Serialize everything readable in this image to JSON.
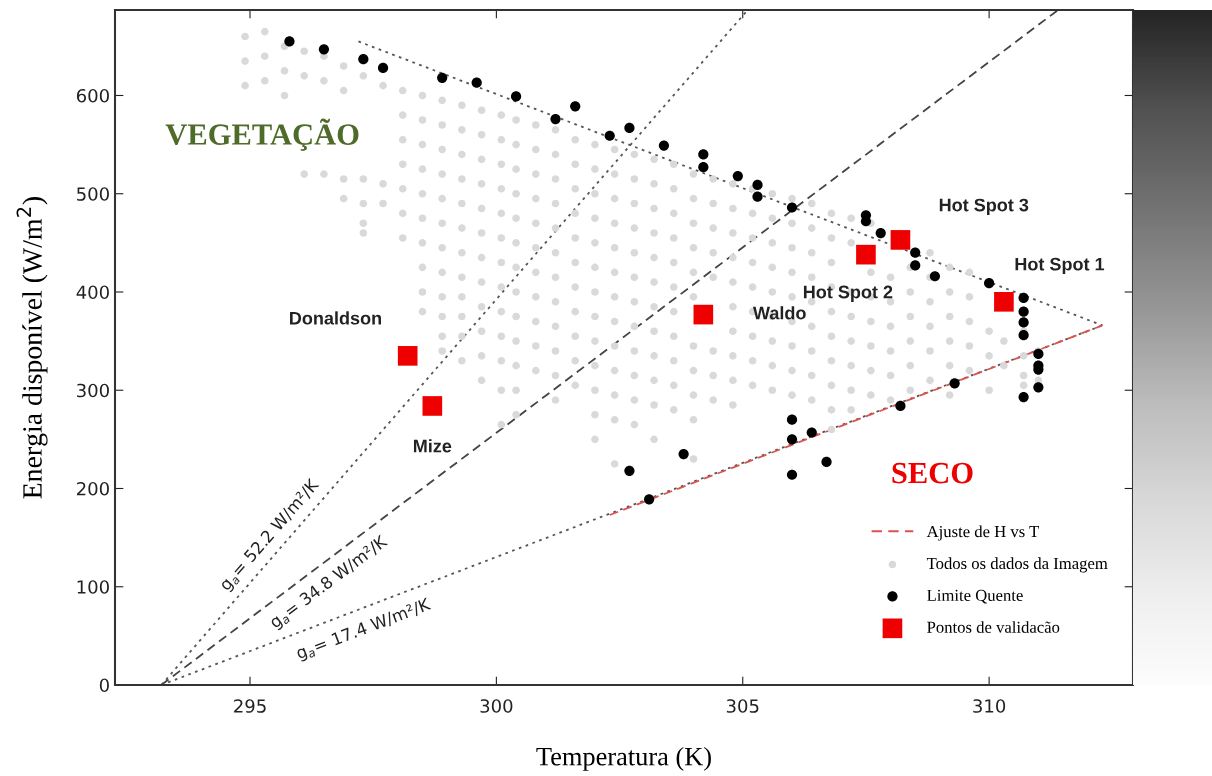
{
  "chart_data": {
    "type": "scatter",
    "xlabel": "Temperatura (K)",
    "ylabel": "Energia disponível (W/m$^{2}$)",
    "xlim": [
      292.26,
      312.92
    ],
    "ylim": [
      0,
      687
    ],
    "xticks": [
      295,
      300,
      305,
      310
    ],
    "yticks": [
      0,
      100,
      200,
      300,
      400,
      500,
      600
    ],
    "grid": false,
    "legend": "bottom right",
    "series": [
      {
        "type": "line",
        "color": "#555555",
        "line_style": "dotted",
        "marker": "none",
        "x": [
          293.2,
          305.1
        ],
        "values": [
          0,
          687
        ]
      },
      {
        "type": "line",
        "color": "#444444",
        "line_style": "dashed",
        "marker": "none",
        "x": [
          293.2,
          311.4
        ],
        "values": [
          0,
          687
        ]
      },
      {
        "type": "line",
        "color": "#555555",
        "line_style": "dotted",
        "marker": "none",
        "x": [
          293.2,
          312.3
        ],
        "values": [
          0,
          366
        ]
      },
      {
        "type": "line",
        "color": "#555555",
        "line_style": "dotted",
        "marker": "none",
        "x": [
          297.2,
          312.3
        ],
        "values": [
          655,
          366
        ]
      },
      {
        "name": "Ajuste de H vs T",
        "type": "line",
        "color": "#d9534f",
        "line_style": "dashed",
        "marker": "none",
        "x": [
          302.3,
          312.3
        ],
        "values": [
          173,
          366
        ]
      },
      {
        "name": "Todos os dados da Imagem",
        "color": "#d9d9d9",
        "marker": "circle",
        "x": [
          294.9,
          294.9,
          294.9,
          295.3,
          295.3,
          295.3,
          295.7,
          295.7,
          295.7,
          296.1,
          296.1,
          296.1,
          296.5,
          296.5,
          296.5,
          296.9,
          296.9,
          296.9,
          296.9,
          297.3,
          297.3,
          297.3,
          297.3,
          297.3,
          297.7,
          297.7,
          297.7,
          298.1,
          298.1,
          298.1,
          298.1,
          298.1,
          298.1,
          298.1,
          298.5,
          298.5,
          298.5,
          298.5,
          298.5,
          298.5,
          298.5,
          298.5,
          298.5,
          298.5,
          298.9,
          298.9,
          298.9,
          298.9,
          298.9,
          298.9,
          298.9,
          298.9,
          298.9,
          298.9,
          298.9,
          298.9,
          299.3,
          299.3,
          299.3,
          299.3,
          299.3,
          299.3,
          299.3,
          299.3,
          299.3,
          299.3,
          299.3,
          299.3,
          299.7,
          299.7,
          299.7,
          299.7,
          299.7,
          299.7,
          299.7,
          299.7,
          299.7,
          299.7,
          299.7,
          299.7,
          300.1,
          300.1,
          300.1,
          300.1,
          300.1,
          300.1,
          300.1,
          300.1,
          300.1,
          300.1,
          300.1,
          300.1,
          300.1,
          300.4,
          300.4,
          300.4,
          300.4,
          300.4,
          300.4,
          300.4,
          300.4,
          300.4,
          300.4,
          300.4,
          300.4,
          300.4,
          300.8,
          300.8,
          300.8,
          300.8,
          300.8,
          300.8,
          300.8,
          300.8,
          300.8,
          300.8,
          300.8,
          301.2,
          301.2,
          301.2,
          301.2,
          301.2,
          301.2,
          301.2,
          301.2,
          301.2,
          301.2,
          301.2,
          301.2,
          301.6,
          301.6,
          301.6,
          301.6,
          301.6,
          301.6,
          301.6,
          301.6,
          301.6,
          301.6,
          301.6,
          302.0,
          302.0,
          302.0,
          302.0,
          302.0,
          302.0,
          302.0,
          302.0,
          302.0,
          302.0,
          302.0,
          302.0,
          302.0,
          302.4,
          302.4,
          302.4,
          302.4,
          302.4,
          302.4,
          302.4,
          302.4,
          302.4,
          302.4,
          302.4,
          302.4,
          302.4,
          302.8,
          302.8,
          302.8,
          302.8,
          302.8,
          302.8,
          302.8,
          302.8,
          302.8,
          302.8,
          302.8,
          302.8,
          303.2,
          303.2,
          303.2,
          303.2,
          303.2,
          303.2,
          303.2,
          303.2,
          303.2,
          303.2,
          303.2,
          303.2,
          303.6,
          303.6,
          303.6,
          303.6,
          303.6,
          303.6,
          303.6,
          303.6,
          303.6,
          303.6,
          303.6,
          304.0,
          304.0,
          304.0,
          304.0,
          304.0,
          304.0,
          304.0,
          304.0,
          304.0,
          304.0,
          304.0,
          304.4,
          304.4,
          304.4,
          304.4,
          304.4,
          304.4,
          304.4,
          304.4,
          304.8,
          304.8,
          304.8,
          304.8,
          304.8,
          304.8,
          304.8,
          304.8,
          304.8,
          304.8,
          305.2,
          305.2,
          305.2,
          305.2,
          305.2,
          305.2,
          305.2,
          305.2,
          305.2,
          305.6,
          305.6,
          305.6,
          305.6,
          305.6,
          305.6,
          305.6,
          305.6,
          305.6,
          306.0,
          306.0,
          306.0,
          306.0,
          306.0,
          306.0,
          306.0,
          306.0,
          306.0,
          306.4,
          306.4,
          306.4,
          306.4,
          306.4,
          306.4,
          306.4,
          306.4,
          306.4,
          306.8,
          306.8,
          306.8,
          306.8,
          306.8,
          306.8,
          306.8,
          306.8,
          306.8,
          306.8,
          307.2,
          307.2,
          307.2,
          307.2,
          307.2,
          307.2,
          307.2,
          307.2,
          307.6,
          307.6,
          307.6,
          307.6,
          307.6,
          307.6,
          307.6,
          308.0,
          308.0,
          308.0,
          308.0,
          308.0,
          308.0,
          308.4,
          308.4,
          308.4,
          308.4,
          308.4,
          308.4,
          308.8,
          308.8,
          308.8,
          308.8,
          308.8,
          308.8,
          309.2,
          309.2,
          309.2,
          309.2,
          309.2,
          309.2,
          309.6,
          309.6,
          309.6,
          309.6,
          309.6,
          310.0,
          310.0,
          310.0,
          310.3,
          310.3,
          310.7,
          310.7,
          310.7,
          310.7,
          311.0,
          311.0
        ],
        "values": [
          660,
          635,
          610,
          665,
          640,
          615,
          650,
          625,
          600,
          645,
          620,
          520,
          640,
          615,
          520,
          630,
          605,
          515,
          495,
          620,
          515,
          490,
          470,
          460,
          610,
          510,
          490,
          605,
          580,
          555,
          530,
          505,
          480,
          455,
          600,
          575,
          550,
          525,
          500,
          475,
          450,
          425,
          400,
          380,
          595,
          570,
          545,
          520,
          495,
          470,
          445,
          420,
          395,
          375,
          355,
          340,
          590,
          565,
          540,
          515,
          490,
          465,
          440,
          415,
          395,
          375,
          355,
          330,
          585,
          560,
          535,
          510,
          485,
          460,
          435,
          410,
          385,
          360,
          335,
          310,
          580,
          555,
          530,
          505,
          480,
          455,
          430,
          405,
          380,
          355,
          330,
          300,
          265,
          575,
          550,
          525,
          500,
          475,
          450,
          425,
          400,
          375,
          350,
          325,
          300,
          275,
          570,
          545,
          520,
          495,
          470,
          445,
          420,
          395,
          370,
          345,
          320,
          565,
          540,
          515,
          490,
          465,
          440,
          415,
          390,
          365,
          340,
          315,
          290,
          555,
          530,
          505,
          480,
          455,
          430,
          405,
          380,
          355,
          330,
          305,
          550,
          525,
          500,
          475,
          450,
          425,
          400,
          375,
          350,
          325,
          300,
          275,
          250,
          545,
          520,
          495,
          470,
          445,
          420,
          395,
          370,
          345,
          320,
          295,
          270,
          225,
          540,
          515,
          490,
          465,
          440,
          415,
          390,
          365,
          340,
          315,
          290,
          265,
          535,
          510,
          485,
          460,
          435,
          410,
          385,
          360,
          335,
          310,
          285,
          250,
          530,
          505,
          480,
          455,
          430,
          405,
          380,
          355,
          330,
          305,
          280,
          520,
          495,
          470,
          445,
          420,
          395,
          345,
          320,
          295,
          270,
          230,
          515,
          490,
          465,
          440,
          415,
          340,
          315,
          290,
          510,
          485,
          460,
          435,
          410,
          385,
          360,
          335,
          310,
          285,
          505,
          480,
          455,
          430,
          405,
          380,
          355,
          330,
          305,
          500,
          475,
          450,
          425,
          400,
          375,
          350,
          325,
          300,
          495,
          470,
          445,
          420,
          395,
          370,
          345,
          320,
          295,
          490,
          465,
          440,
          415,
          390,
          365,
          340,
          315,
          290,
          480,
          455,
          430,
          405,
          380,
          355,
          330,
          305,
          280,
          260,
          475,
          450,
          400,
          375,
          350,
          325,
          300,
          280,
          470,
          420,
          395,
          370,
          345,
          320,
          295,
          415,
          390,
          365,
          340,
          315,
          290,
          425,
          400,
          375,
          350,
          325,
          300,
          440,
          415,
          390,
          365,
          340,
          310,
          425,
          400,
          375,
          350,
          325,
          295,
          420,
          395,
          370,
          345,
          320,
          360,
          335,
          300,
          350,
          325,
          360,
          335,
          315,
          305,
          340,
          310
        ]
      },
      {
        "name": "Limite Quente",
        "color": "#000000",
        "marker": "circle",
        "x": [
          295.8,
          296.5,
          297.3,
          297.7,
          298.9,
          299.6,
          300.4,
          301.2,
          301.6,
          302.3,
          302.7,
          303.4,
          304.2,
          304.2,
          304.9,
          305.3,
          305.3,
          306.0,
          307.5,
          307.5,
          307.8,
          308.5,
          308.5,
          308.9,
          310.0,
          310.7,
          310.7,
          310.7,
          310.7,
          310.7,
          311.0,
          311.0,
          311.0,
          311.0,
          309.3,
          308.2,
          302.7,
          303.1,
          303.8,
          306.0,
          306.0,
          306.0,
          306.4,
          306.7
        ],
        "values": [
          655,
          647,
          637,
          628,
          618,
          613,
          599,
          576,
          589,
          559,
          567,
          549,
          540,
          527,
          518,
          509,
          497,
          486,
          478,
          472,
          460,
          440,
          427,
          416,
          409,
          394,
          380,
          369,
          356,
          293,
          337,
          325,
          321,
          303,
          307,
          284,
          218,
          189,
          235,
          270,
          250,
          214,
          257,
          227
        ]
      },
      {
        "name": "Pontos de validacão",
        "color": "#ee0000",
        "marker": "square",
        "x": [
          298.2,
          298.7,
          304.2,
          307.5,
          308.2,
          310.3
        ],
        "values": [
          335,
          284,
          377,
          438,
          453,
          390
        ]
      }
    ],
    "annotations": [
      "VEGETAÇÃO",
      "SECO",
      "g$_{a}$= 52.2 W/m²/K",
      "g$_{a}$= 34.8 W/m²/K",
      "g$_{a}$= 17.4 W/m²/K",
      {
        "text": "Donaldson",
        "x": 298.2,
        "y": 335
      },
      {
        "text": "Mize",
        "x": 298.7,
        "y": 284
      },
      {
        "text": "Waldo",
        "x": 304.2,
        "y": 377
      },
      {
        "text": "Hot Spot 2",
        "x": 307.5,
        "y": 438
      },
      {
        "text": "Hot Spot 3",
        "x": 308.2,
        "y": 453
      },
      {
        "text": "Hot Spot 1",
        "x": 310.3,
        "y": 390
      }
    ]
  }
}
